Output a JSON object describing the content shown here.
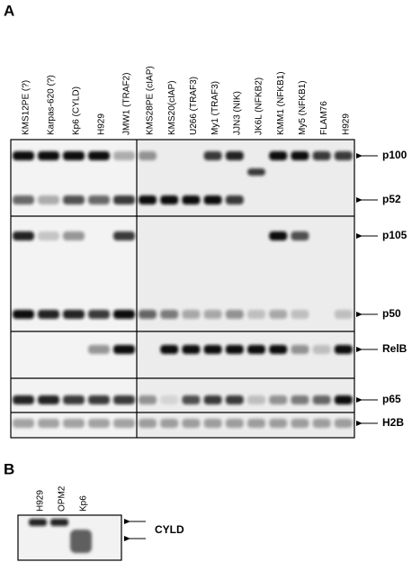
{
  "panels": [
    {
      "label": "A",
      "lanes": [
        "KMS12PE (?)",
        "Karpas-620 (?)",
        "Kp6 (CYLD)",
        "H929",
        "JMW1 (TRAF2)",
        "KMS28PE (cIAP)",
        "KMS20(cIAP)",
        "U266 (TRAF3)",
        "My1 (TRAF3)",
        "JJN3 (NIK)",
        "JK6L (NFKB2)",
        "KMM1 (NFKB1)",
        "My5 (NFKB1)",
        "FLAM76",
        "H929"
      ],
      "bands": [
        "p100",
        "p52",
        "p105",
        "p50",
        "RelB",
        "p65",
        "H2B"
      ]
    },
    {
      "label": "B",
      "lanes": [
        "H929",
        "OPM2",
        "Kp6"
      ],
      "bands": [
        "CYLD"
      ]
    }
  ]
}
